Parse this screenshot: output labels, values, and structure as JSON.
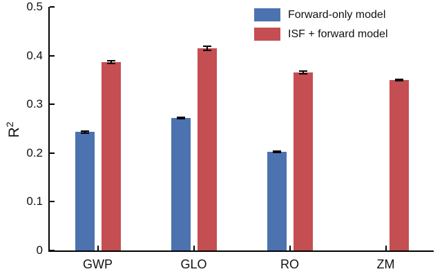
{
  "chart_data": {
    "type": "bar",
    "title": "",
    "categories": [
      "GWP",
      "GLO",
      "RO",
      "ZM"
    ],
    "series": [
      {
        "name": "Forward-only model",
        "color": "#4C72B0",
        "values": [
          0.243,
          0.272,
          0.203,
          null
        ],
        "errors": [
          0.003,
          0.003,
          0.003,
          null
        ]
      },
      {
        "name": "ISF + forward model",
        "color": "#C44E52",
        "values": [
          0.387,
          0.415,
          0.365,
          0.35
        ],
        "errors": [
          0.004,
          0.005,
          0.004,
          0.003
        ]
      }
    ],
    "xlabel": "",
    "ylabel": "R^2",
    "ylabel_base": "R",
    "ylabel_sup": "2",
    "ylim": [
      0,
      0.5
    ],
    "yticks": [
      0,
      0.1,
      0.2,
      0.3,
      0.4,
      0.5
    ],
    "ytick_labels": [
      "0",
      "0.1",
      "0.2",
      "0.3",
      "0.4",
      "0.5"
    ],
    "grid": false,
    "legend_position": "top-right",
    "error_bar_color": "#000000",
    "axis_color": "#000000"
  }
}
